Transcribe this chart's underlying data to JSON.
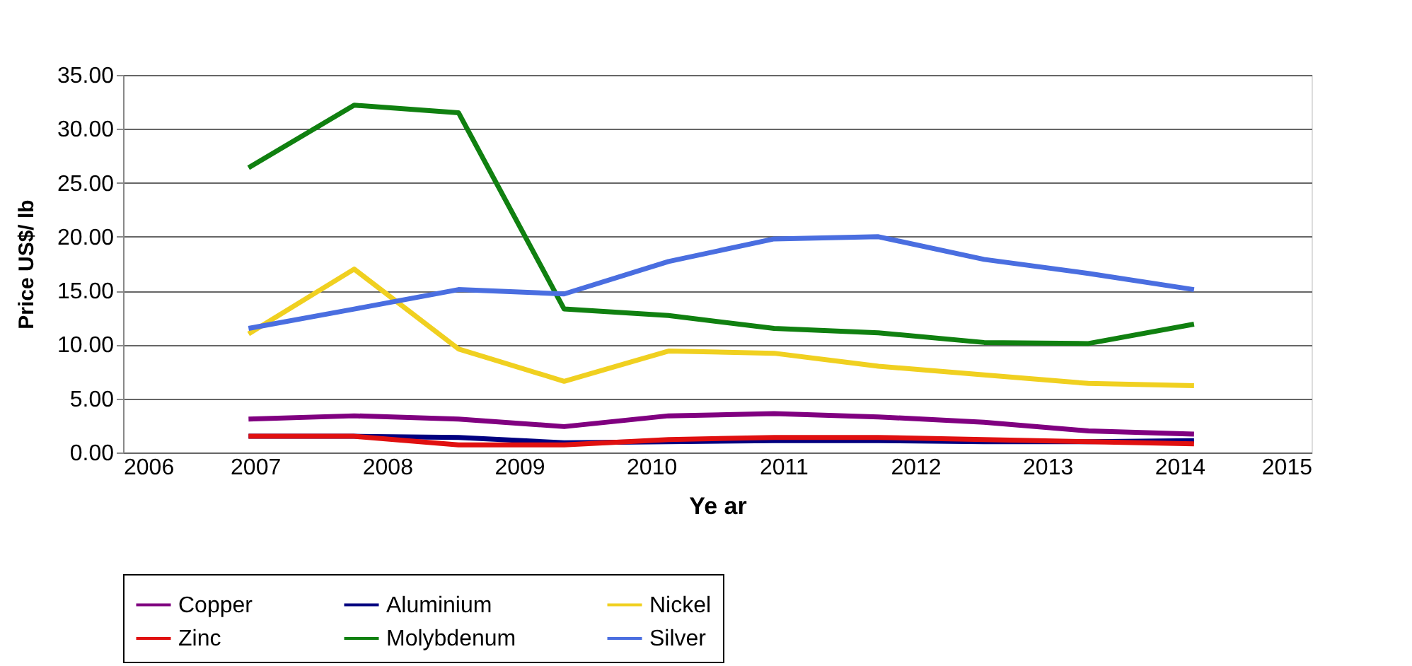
{
  "chart_data": {
    "type": "line",
    "xlabel": "Ye ar",
    "ylabel": "Price US$/ lb",
    "x": [
      2006.95,
      2007.75,
      2008.54,
      2009.34,
      2010.13,
      2010.93,
      2011.72,
      2012.52,
      2013.31,
      2014.11
    ],
    "series": [
      {
        "name": "Copper",
        "color": "#800080",
        "values": [
          3.1,
          3.4,
          3.1,
          2.4,
          3.4,
          3.6,
          3.3,
          2.8,
          2.0,
          1.7
        ]
      },
      {
        "name": "Aluminium",
        "color": "#000080",
        "values": [
          1.5,
          1.5,
          1.4,
          0.9,
          1.0,
          1.1,
          1.1,
          1.0,
          1.0,
          1.1
        ]
      },
      {
        "name": "Nickel",
        "color": "#f0d020",
        "values": [
          11.0,
          17.0,
          9.6,
          6.6,
          9.4,
          9.2,
          8.0,
          7.2,
          6.4,
          6.2
        ]
      },
      {
        "name": "Zinc",
        "color": "#e01010",
        "values": [
          1.5,
          1.5,
          0.7,
          0.7,
          1.2,
          1.4,
          1.4,
          1.2,
          1.0,
          0.8
        ]
      },
      {
        "name": "Molybdenum",
        "color": "#108010",
        "values": [
          26.4,
          32.2,
          31.5,
          13.3,
          12.7,
          11.5,
          11.1,
          10.2,
          10.1,
          11.9
        ]
      },
      {
        "name": "Silver",
        "color": "#4a6ee0",
        "values": [
          11.5,
          13.3,
          15.1,
          14.7,
          17.7,
          19.8,
          20.0,
          17.9,
          16.6,
          15.1
        ]
      }
    ],
    "xlim": [
      2006,
      2015
    ],
    "xticks": [
      2006,
      2007,
      2008,
      2009,
      2010,
      2011,
      2012,
      2013,
      2014,
      2015
    ],
    "ylim": [
      0,
      35
    ],
    "yticks": [
      {
        "value": 0,
        "label": "0.00"
      },
      {
        "value": 5,
        "label": "5.00"
      },
      {
        "value": 10,
        "label": "10.00"
      },
      {
        "value": 15,
        "label": "15.00"
      },
      {
        "value": 20,
        "label": "20.00"
      },
      {
        "value": 25,
        "label": "25.00"
      },
      {
        "value": 30,
        "label": "30.00"
      },
      {
        "value": 35,
        "label": "35.00"
      }
    ],
    "grid": "y",
    "legend": "bottom",
    "marker": "none",
    "line_style": "solid"
  }
}
